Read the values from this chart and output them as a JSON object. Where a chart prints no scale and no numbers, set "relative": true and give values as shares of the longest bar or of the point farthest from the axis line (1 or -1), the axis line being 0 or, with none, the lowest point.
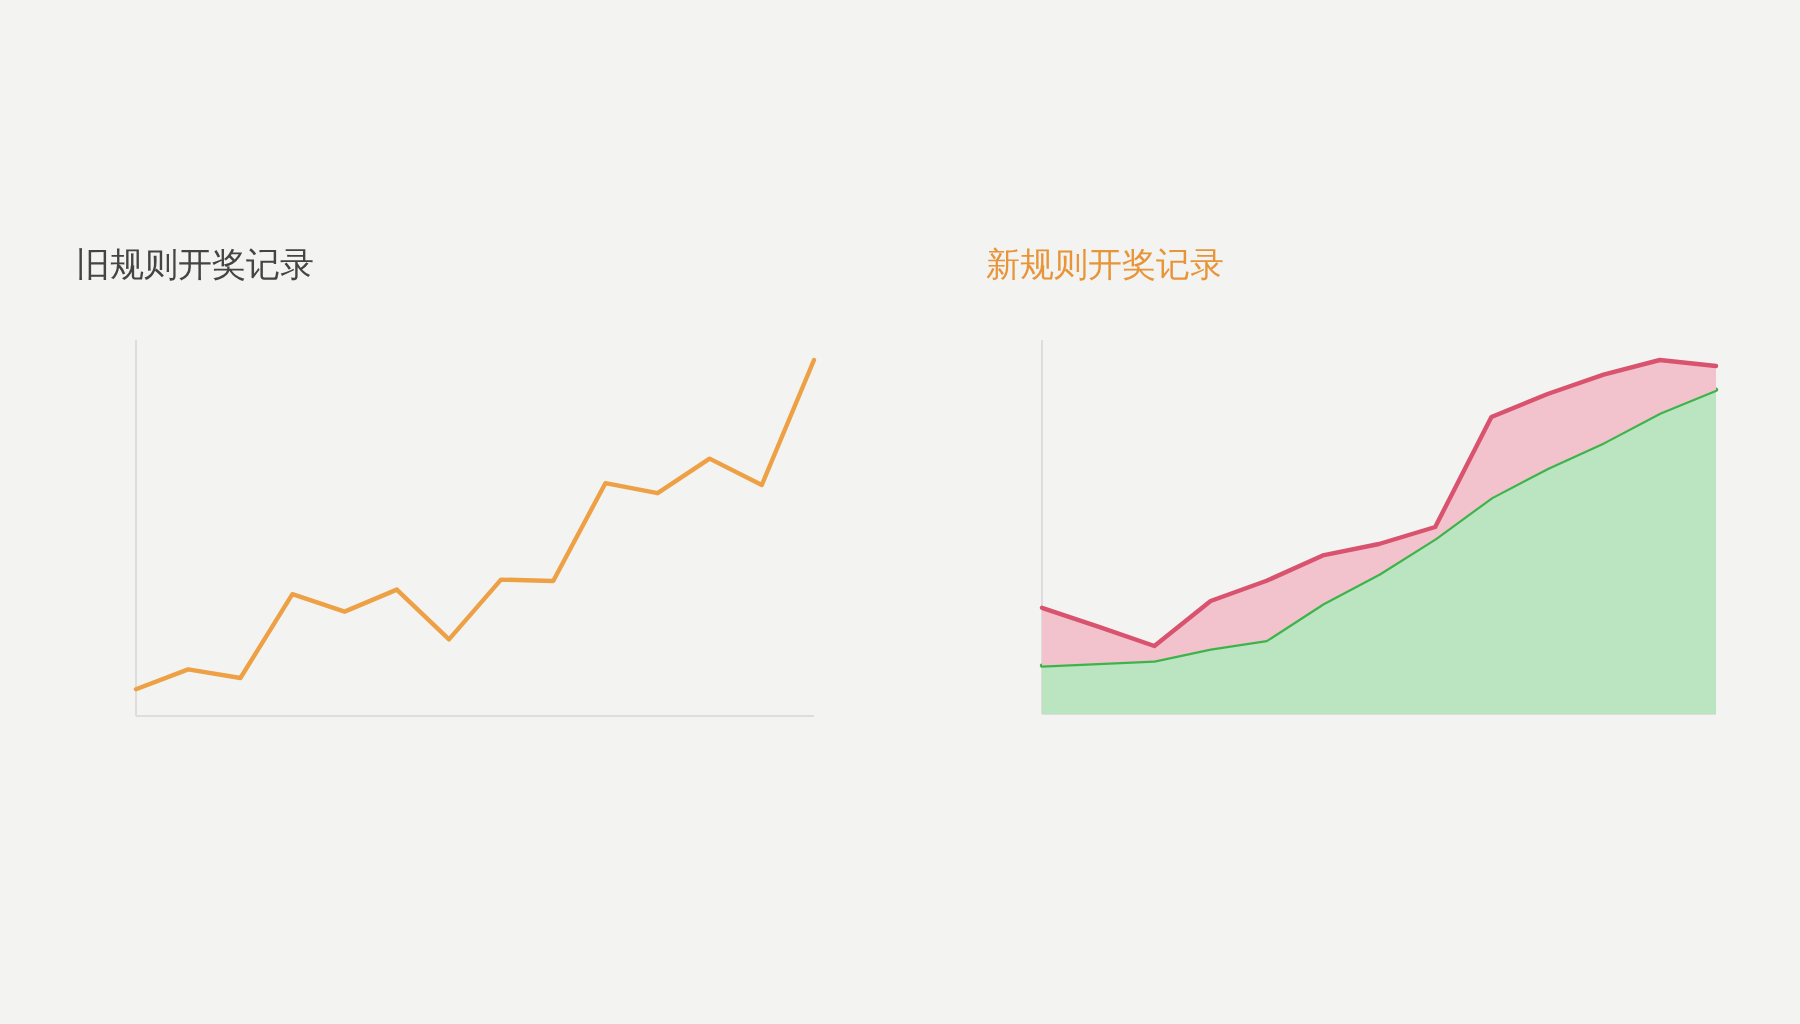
{
  "chart_data": [
    {
      "type": "line",
      "title": "旧规则开奖记录",
      "relative": true,
      "categories": [
        null,
        null,
        null,
        null,
        null,
        null,
        null,
        null,
        null,
        null,
        null,
        null,
        null,
        null
      ],
      "series": [
        {
          "color": "#eda044",
          "values": [
            0.075,
            0.131,
            0.107,
            0.342,
            0.293,
            0.355,
            0.215,
            0.383,
            0.379,
            0.654,
            0.626,
            0.723,
            0.649,
            1
          ]
        }
      ]
    },
    {
      "type": "area",
      "title": "新规则开奖记录",
      "relative": true,
      "categories": [
        null,
        null,
        null,
        null,
        null,
        null,
        null,
        null,
        null,
        null,
        null,
        null,
        null
      ],
      "series": [
        {
          "color": "#3cb44b",
          "values": [
            0.137,
            0.144,
            0.151,
            0.185,
            0.209,
            0.312,
            0.396,
            0.496,
            0.612,
            0.695,
            0.767,
            0.851,
            0.916
          ]
        },
        {
          "color": "#d9536f",
          "values": [
            0.3,
            0.247,
            0.192,
            0.319,
            0.376,
            0.448,
            0.48,
            0.528,
            0.839,
            0.904,
            0.959,
            1,
            0.983
          ]
        }
      ]
    }
  ]
}
